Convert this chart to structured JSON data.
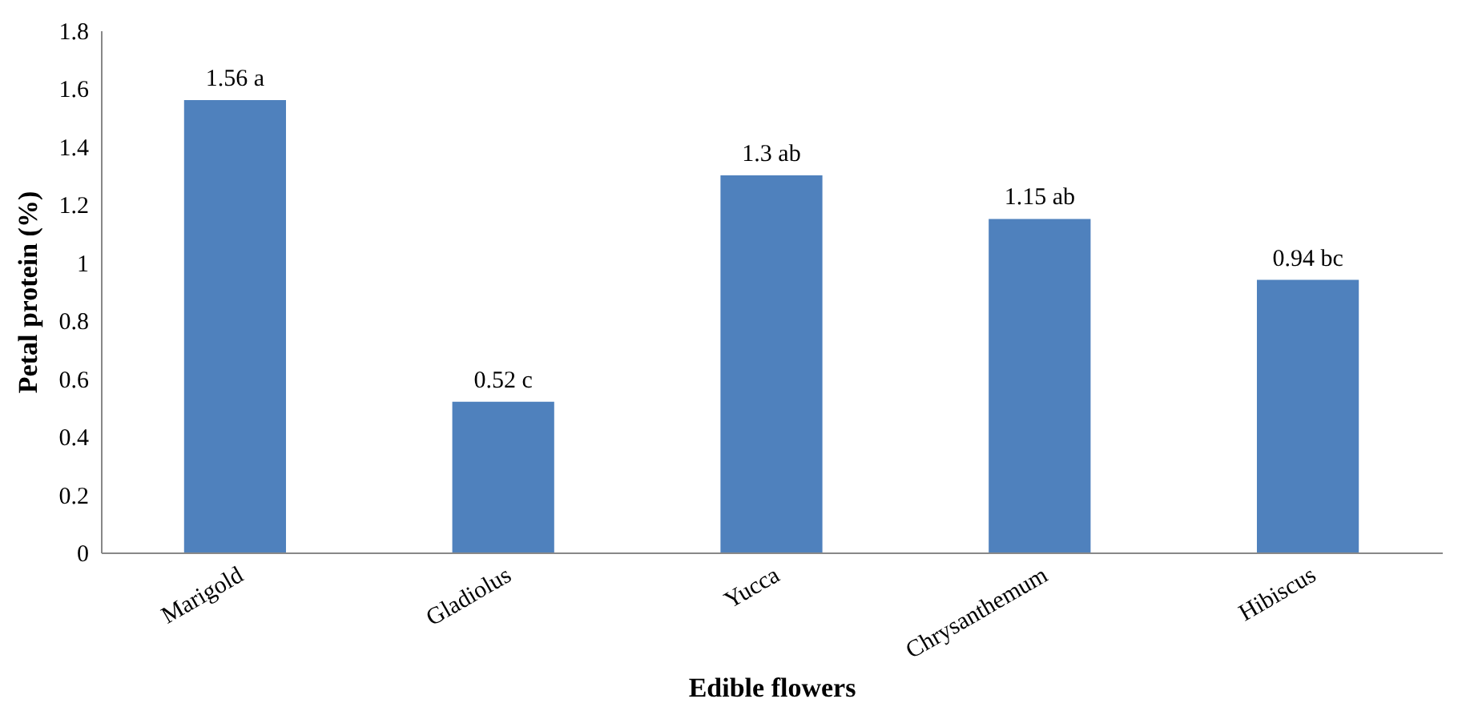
{
  "chart_data": {
    "type": "bar",
    "xlabel": "Edible flowers",
    "ylabel": "Petal protein (%)",
    "categories": [
      "Marigold",
      "Gladiolus",
      "Yucca",
      "Chrysanthemum",
      "Hibiscus"
    ],
    "values": [
      1.56,
      0.52,
      1.3,
      1.15,
      0.94
    ],
    "value_labels": [
      "1.56 a",
      "0.52 c",
      "1.3 ab",
      "1.15 ab",
      "0.94 bc"
    ],
    "color": "#4f81bd",
    "ylim": [
      0,
      1.8
    ],
    "yticks": [
      0,
      0.2,
      0.4,
      0.6,
      0.8,
      1,
      1.2,
      1.4,
      1.6,
      1.8
    ],
    "grid": false
  }
}
